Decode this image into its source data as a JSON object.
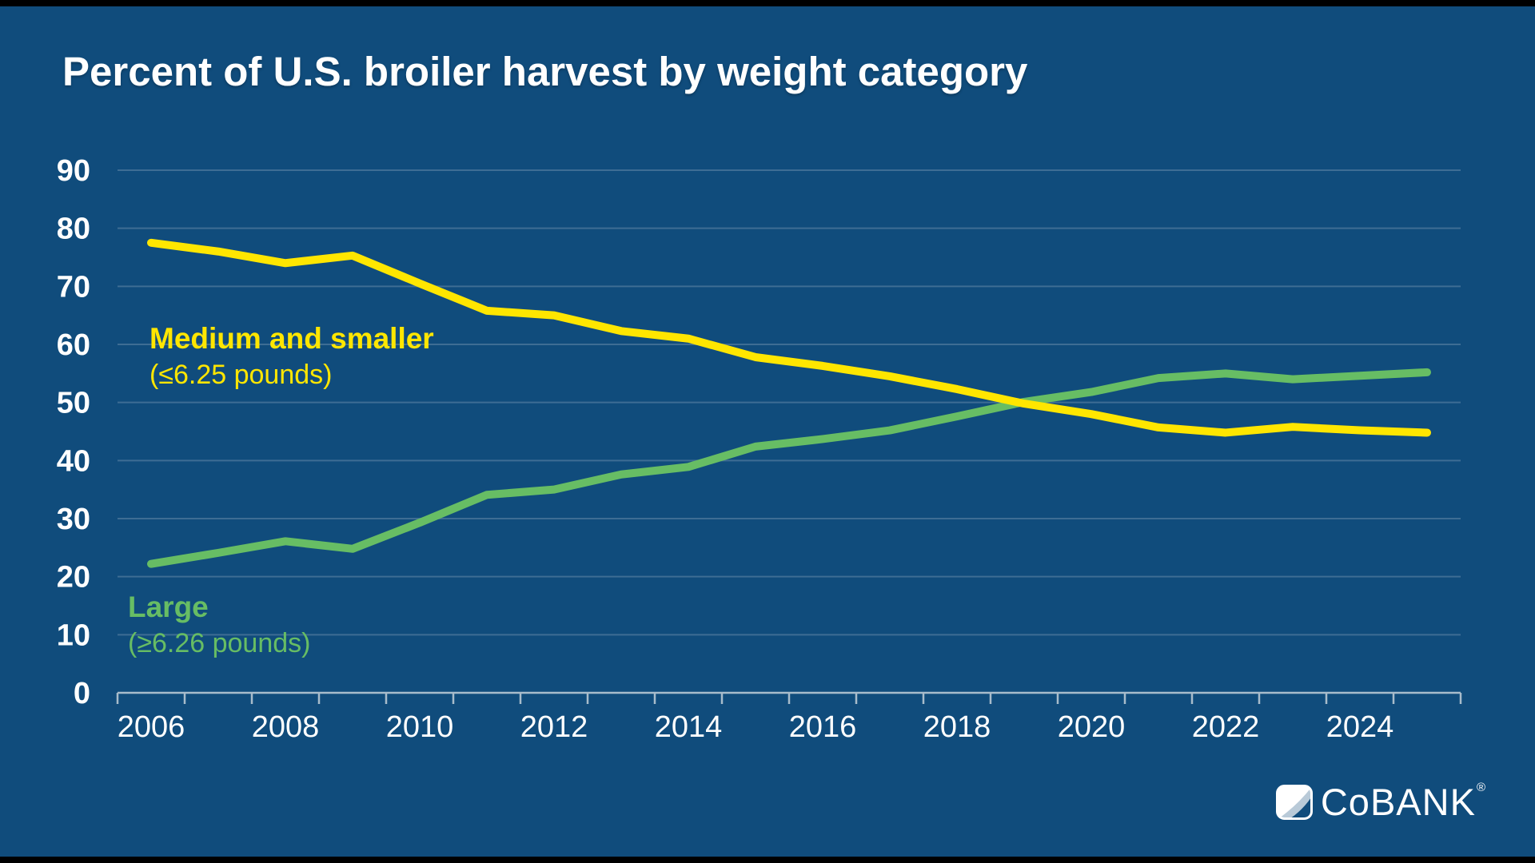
{
  "title": "Percent of U.S. broiler harvest by weight category",
  "logo": {
    "brand": "CoBANK",
    "registered_mark": "®"
  },
  "chart_data": {
    "type": "line",
    "title": "Percent of U.S. broiler harvest by weight category",
    "x": [
      2006,
      2007,
      2008,
      2009,
      2010,
      2011,
      2012,
      2013,
      2014,
      2015,
      2016,
      2017,
      2018,
      2019,
      2020,
      2021,
      2022,
      2023,
      2024,
      2025
    ],
    "x_tick_labels": [
      "2006",
      "2008",
      "2010",
      "2012",
      "2014",
      "2016",
      "2018",
      "2020",
      "2022",
      "2024"
    ],
    "y_tick_labels": [
      "0",
      "10",
      "20",
      "30",
      "40",
      "50",
      "60",
      "70",
      "80",
      "90"
    ],
    "ylim": [
      0,
      90
    ],
    "ytick_step": 10,
    "grid": "horizontal",
    "legend_position": "inline-annotations",
    "series": [
      {
        "name": "Medium and smaller",
        "sublabel": "(≤6.25 pounds)",
        "color": "#ffe600",
        "values": [
          77.5,
          76.0,
          74.0,
          75.3,
          70.5,
          65.8,
          65.0,
          62.3,
          61.0,
          57.8,
          56.3,
          54.5,
          52.3,
          49.8,
          48.0,
          45.7,
          44.8,
          45.8,
          45.2,
          44.8
        ]
      },
      {
        "name": "Large",
        "sublabel": "(≥6.26 pounds)",
        "color": "#67bd64",
        "values": [
          22.2,
          24.1,
          26.1,
          24.8,
          29.3,
          34.1,
          35.0,
          37.6,
          38.9,
          42.4,
          43.7,
          45.2,
          47.6,
          50.1,
          51.8,
          54.2,
          55.0,
          54.0,
          54.6,
          55.2
        ]
      }
    ],
    "colors": {
      "background": "#104c7c",
      "gridline": "#3e6d94",
      "axis_line": "#a8bccb",
      "tick_text": "#ffffff"
    }
  }
}
